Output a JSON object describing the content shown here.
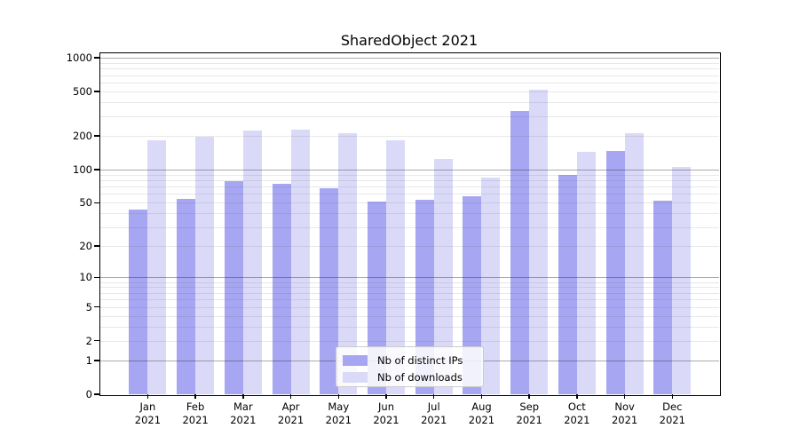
{
  "chart_data": {
    "type": "bar",
    "title": "SharedObject 2021",
    "categories": [
      "Jan",
      "Feb",
      "Mar",
      "Apr",
      "May",
      "Jun",
      "Jul",
      "Aug",
      "Sep",
      "Oct",
      "Nov",
      "Dec"
    ],
    "category_year": "2021",
    "series": [
      {
        "name": "Nb of distinct IPs",
        "color": "#a6a6f2",
        "values": [
          43,
          54,
          79,
          74,
          68,
          51,
          53,
          57,
          335,
          89,
          146,
          52
        ]
      },
      {
        "name": "Nb of downloads",
        "color": "#dadaf8",
        "values": [
          182,
          197,
          224,
          228,
          213,
          184,
          125,
          84,
          520,
          145,
          211,
          106
        ]
      }
    ],
    "yscale": "log1p",
    "ylim": [
      0,
      1095
    ],
    "yticks": [
      {
        "label": "1000",
        "value": 1000
      },
      {
        "label": "500",
        "value": 500
      },
      {
        "label": "200",
        "value": 200
      },
      {
        "label": "100",
        "value": 100
      },
      {
        "label": "50",
        "value": 50
      },
      {
        "label": "20",
        "value": 20
      },
      {
        "label": "10",
        "value": 10
      },
      {
        "label": "5",
        "value": 5
      },
      {
        "label": "2",
        "value": 2
      },
      {
        "label": "1",
        "value": 1
      },
      {
        "label": "0",
        "value": 0
      }
    ],
    "grid": {
      "major_values": [
        1,
        10,
        100,
        1000
      ],
      "minor_values": [
        2,
        3,
        4,
        5,
        6,
        7,
        8,
        9,
        20,
        30,
        40,
        50,
        60,
        70,
        80,
        90,
        200,
        300,
        400,
        500,
        600,
        700,
        800,
        900
      ]
    },
    "legend_position": "lower center"
  }
}
